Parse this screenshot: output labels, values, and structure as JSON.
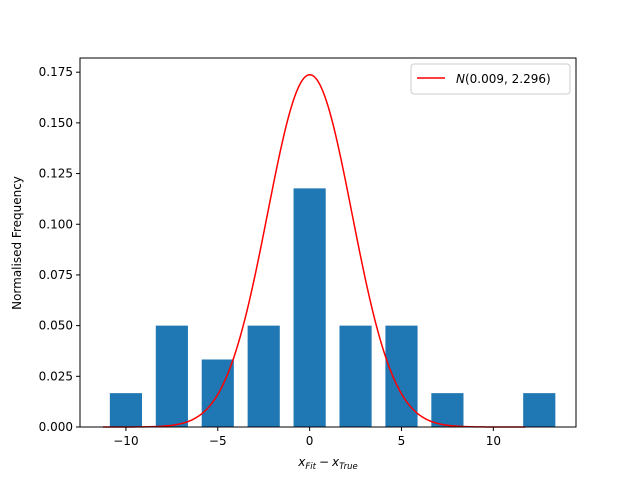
{
  "chart_data": {
    "type": "bar",
    "title": "",
    "xlabel_main": "x",
    "xlabel_sub_fit": "Fit",
    "xlabel_minus": "−",
    "xlabel_sub_true": "True",
    "ylabel": "Normalised Frequency",
    "xlim": [
      -12.5,
      14.5
    ],
    "ylim": [
      0,
      0.182
    ],
    "x_ticks": [
      -10,
      -5,
      0,
      5,
      10
    ],
    "x_tick_labels": [
      "−10",
      "−5",
      "0",
      "5",
      "10"
    ],
    "y_ticks": [
      0.0,
      0.025,
      0.05,
      0.075,
      0.1,
      0.125,
      0.15,
      0.175
    ],
    "y_tick_labels": [
      "0.000",
      "0.025",
      "0.050",
      "0.075",
      "0.100",
      "0.125",
      "0.150",
      "0.175"
    ],
    "grid": false,
    "legend_position": "top-right",
    "bar_color": "#1f77b4",
    "curve_color": "#ff0000",
    "bar_width": 1.75,
    "bars": [
      {
        "x": -10,
        "value": 0.0167
      },
      {
        "x": -7.5,
        "value": 0.05
      },
      {
        "x": -5,
        "value": 0.0333
      },
      {
        "x": -2.5,
        "value": 0.05
      },
      {
        "x": 0,
        "value": 0.1177
      },
      {
        "x": 2.5,
        "value": 0.05
      },
      {
        "x": 5,
        "value": 0.05
      },
      {
        "x": 7.5,
        "value": 0.0167
      },
      {
        "x": 10,
        "value": 0.0
      },
      {
        "x": 12.5,
        "value": 0.0167
      }
    ],
    "curve": {
      "name_main": "N",
      "name_params": "(0.009, 2.296)",
      "mean": 0.009,
      "sigma": 2.296,
      "x_start": -11.25,
      "x_end": 11.75
    }
  }
}
